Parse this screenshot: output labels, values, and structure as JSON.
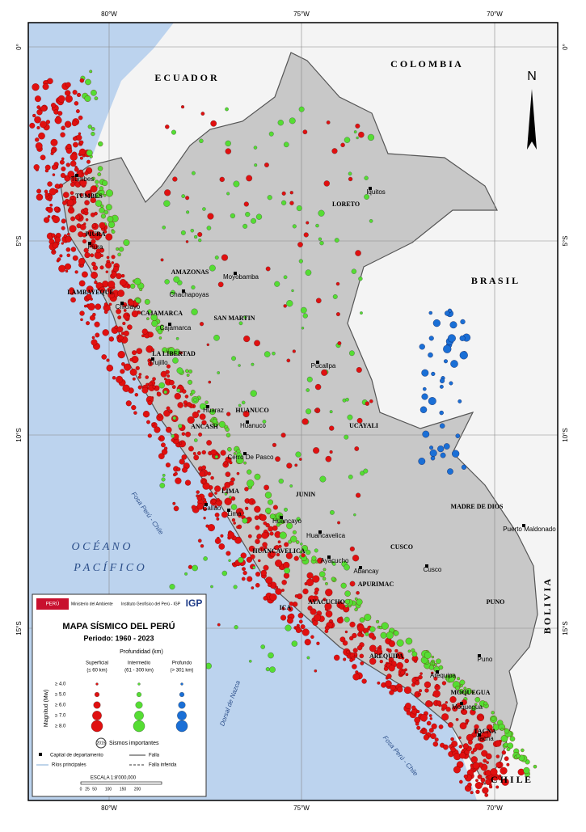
{
  "graticule": {
    "top": [
      "80°W",
      "75°W",
      "70°W"
    ],
    "bottom": [
      "80°W",
      "75°W",
      "70°W"
    ],
    "left": [
      "0°",
      "5°S",
      "10°S",
      "15°S"
    ],
    "right": [
      "0°",
      "5°S",
      "10°S",
      "15°S"
    ]
  },
  "countries": [
    "E C U A D O R",
    "C O L O M B I A",
    "B R A S I L",
    "B O L I V I A",
    "C H I L E"
  ],
  "ocean": [
    "O C É A N O",
    "P A C Í F I C O"
  ],
  "regions": [
    "LORETO",
    "AMAZONAS",
    "LAMBAYEQUE",
    "CAJAMARCA",
    "SAN MARTIN",
    "LA LIBERTAD",
    "ANCASH",
    "HUANUCO",
    "UCAYALI",
    "LIMA",
    "JUNIN",
    "HUANCAVELICA",
    "ICA",
    "AYACUCHO",
    "CUSCO",
    "APURIMAC",
    "PUNO",
    "AREQUIPA",
    "MOQUEGUA",
    "TACNA",
    "MADRE DE DIOS",
    "TUMBES",
    "PIURA"
  ],
  "cities": [
    "Iquitos",
    "Tumbes",
    "Piura",
    "Chiclayo",
    "Chachapoyas",
    "Moyobamba",
    "Cajamarca",
    "Trujillo",
    "Pucallpa",
    "Huaraz",
    "Huanuco",
    "Cerro De Pasco",
    "Callao",
    "Lima",
    "Huancayo",
    "Huancavelica",
    "Ayacucho",
    "Abancay",
    "Cusco",
    "Puerto Maldonado",
    "Puno",
    "Arequipa",
    "Moquegua",
    "Tacna"
  ],
  "features": [
    "Dorsal de Nazca",
    "Fosa Perú - Chile",
    "Fosa Perú - Chile"
  ],
  "north": "N",
  "legend": {
    "peru": "PERÚ",
    "ministry": "Ministerio del Ambiente",
    "institute": "Instituto Geofísico del Perú - IGP",
    "igp": "IGP",
    "title": "MAPA SÍSMICO DEL PERÚ",
    "period": "Periodo: 1960 - 2023",
    "depth": "Profundidad (km)",
    "columns": [
      [
        "Superficial",
        "(≤ 60 km)"
      ],
      [
        "Intermedio",
        "(61 - 300 km)"
      ],
      [
        "Profundo",
        "(> 301 km)"
      ]
    ],
    "magnitude": "Magnitud (Mw)",
    "rows": [
      "≥ 4.0",
      "≥ 5.0",
      "≥ 6.0",
      "≥ 7.0",
      "≥ 8.0"
    ],
    "important_year": "2015",
    "important": "Sismos importantes",
    "capital": "Capital de departamento",
    "fault": "Falla",
    "rivers": "Ríos principales",
    "inferred": "Falla inferida",
    "scale": "ESCALA    1:8'000,000",
    "scale_ticks": [
      "0",
      "25",
      "50",
      "100",
      "150",
      "200"
    ]
  }
}
